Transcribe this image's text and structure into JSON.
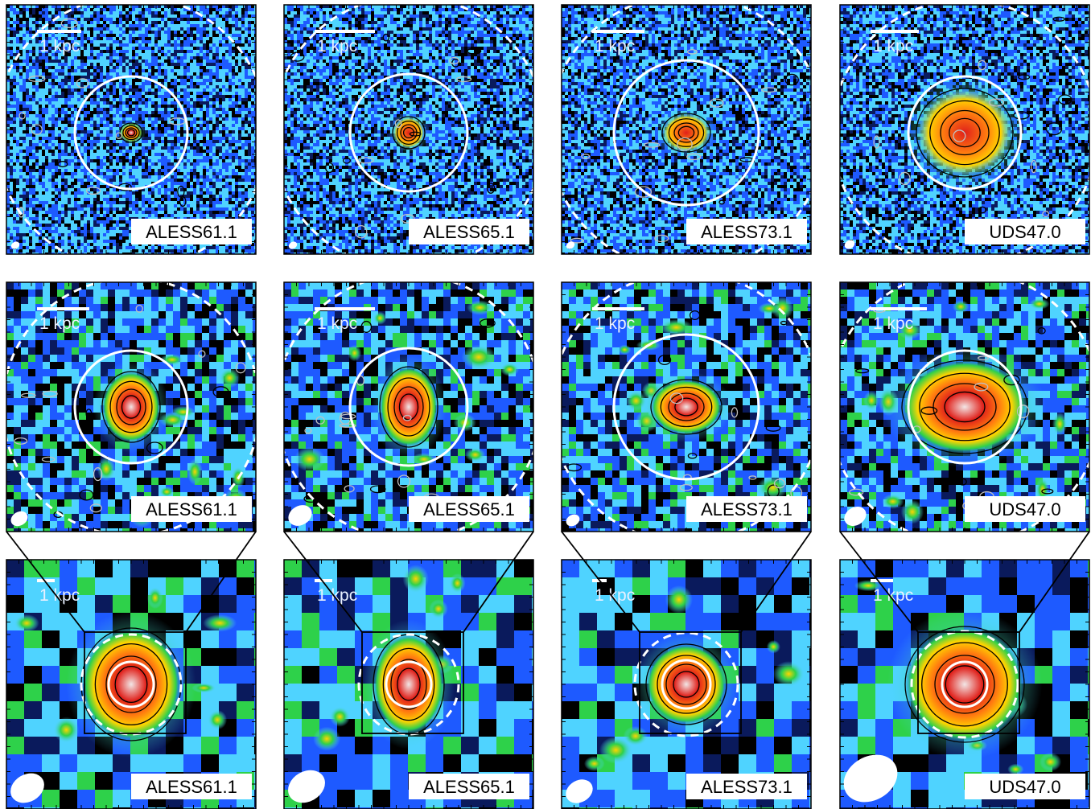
{
  "figure": {
    "scale_bar_label": "1 kpc",
    "rows": [
      {
        "panels": [
          {
            "label": "ALESS61.1"
          },
          {
            "label": "ALESS65.1"
          },
          {
            "label": "ALESS73.1"
          },
          {
            "label": "UDS47.0"
          }
        ]
      },
      {
        "panels": [
          {
            "label": "ALESS61.1"
          },
          {
            "label": "ALESS65.1"
          },
          {
            "label": "ALESS73.1"
          },
          {
            "label": "UDS47.0"
          }
        ]
      },
      {
        "panels": [
          {
            "label": "ALESS61.1"
          },
          {
            "label": "ALESS65.1"
          },
          {
            "label": "ALESS73.1"
          },
          {
            "label": "UDS47.0"
          }
        ]
      }
    ],
    "colors": {
      "background": "#0a1a5c",
      "deep": "#000000",
      "mid": "#1e5aff",
      "light": "#4fd3ff",
      "green": "#2ed14a",
      "yellow": "#ffd400",
      "orange": "#ff7a10",
      "red": "#e0201a",
      "peak": "#f2e6e6",
      "contour": "#000000",
      "negative_contour": "#bfbfbf",
      "overlay": "#ffffff",
      "label_bg": "#ffffff",
      "label_text": "#000000",
      "frame": "#000000"
    }
  }
}
